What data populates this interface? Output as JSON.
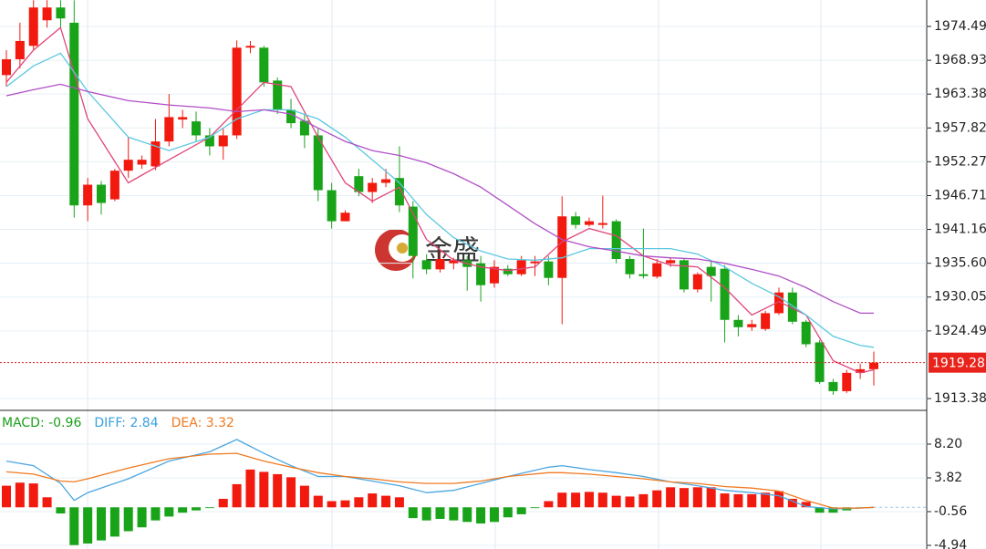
{
  "chart_data": [
    {
      "type": "candlestick",
      "watermark": "金盛",
      "open": [
        1966.5,
        1969.1,
        1971.3,
        1975.5,
        1977.6,
        1975.1,
        1945.1,
        1948.5,
        1946.1,
        1950.8,
        1951.8,
        1951.5,
        1955.6,
        1959.2,
        1958.9,
        1956.6,
        1954.8,
        1956.6,
        1971.0,
        1971.0,
        1965.6,
        1960.8,
        1959.0,
        1956.6,
        1947.6,
        1942.5,
        1949.9,
        1947.3,
        1948.8,
        1949.6,
        1944.9,
        1936.1,
        1934.6,
        1935.6,
        1936.1,
        1935.6,
        1932.3,
        1934.7,
        1933.8,
        1935.6,
        1935.9,
        1933.2,
        1943.3,
        1941.9,
        1941.9,
        1942.5,
        1936.3,
        1933.8,
        1933.4,
        1935.6,
        1936.1,
        1931.3,
        1935.0,
        1934.7,
        1926.3,
        1925.1,
        1924.8,
        1927.4,
        1930.8,
        1926.0,
        1922.6,
        1916.1,
        1914.6,
        1917.6,
        1918.2
      ],
      "high": [
        1970.6,
        1975.1,
        1978.8,
        1978.8,
        1978.8,
        1978.8,
        1949.6,
        1949.1,
        1951.1,
        1956.3,
        1953.3,
        1959.3,
        1963.4,
        1960.8,
        1960.5,
        1957.8,
        1957.8,
        1972.2,
        1972.1,
        1971.3,
        1966.1,
        1962.6,
        1960.1,
        1957.8,
        1948.8,
        1944.3,
        1951.1,
        1949.6,
        1951.1,
        1954.8,
        1945.8,
        1937.1,
        1937.6,
        1936.5,
        1936.8,
        1936.8,
        1936.1,
        1935.3,
        1936.8,
        1936.8,
        1936.8,
        1946.6,
        1944.0,
        1943.1,
        1946.7,
        1942.8,
        1936.8,
        1941.3,
        1936.3,
        1936.5,
        1936.3,
        1934.1,
        1936.1,
        1935.3,
        1927.1,
        1926.3,
        1927.8,
        1931.6,
        1931.6,
        1926.3,
        1923.0,
        1916.6,
        1918.1,
        1919.1,
        1921.1
      ],
      "low": [
        1964.6,
        1967.6,
        1970.6,
        1974.3,
        1974.3,
        1943.1,
        1942.5,
        1943.6,
        1945.8,
        1949.6,
        1951.1,
        1950.9,
        1954.8,
        1957.8,
        1955.6,
        1953.3,
        1952.6,
        1956.0,
        1970.1,
        1964.6,
        1960.1,
        1957.8,
        1954.5,
        1945.8,
        1941.3,
        1942.5,
        1946.6,
        1945.5,
        1948.1,
        1944.0,
        1933.1,
        1933.8,
        1934.1,
        1934.6,
        1931.1,
        1929.3,
        1931.6,
        1933.5,
        1933.5,
        1933.5,
        1932.0,
        1925.6,
        1941.3,
        1941.6,
        1941.3,
        1935.6,
        1933.1,
        1933.1,
        1933.1,
        1935.0,
        1930.8,
        1930.8,
        1929.3,
        1922.6,
        1923.6,
        1924.5,
        1924.5,
        1927.1,
        1925.6,
        1921.8,
        1915.8,
        1914.0,
        1914.3,
        1916.6,
        1915.5
      ],
      "close": [
        1969.1,
        1972.1,
        1977.6,
        1977.6,
        1975.8,
        1945.1,
        1948.5,
        1945.5,
        1950.8,
        1952.6,
        1952.6,
        1955.6,
        1959.6,
        1959.6,
        1956.6,
        1954.8,
        1956.6,
        1971.0,
        1971.3,
        1965.3,
        1960.8,
        1958.6,
        1956.6,
        1947.6,
        1942.5,
        1943.9,
        1947.3,
        1948.8,
        1949.4,
        1945.1,
        1936.8,
        1934.6,
        1936.3,
        1936.1,
        1935.0,
        1932.0,
        1935.0,
        1933.8,
        1936.1,
        1935.9,
        1933.2,
        1943.3,
        1941.9,
        1942.5,
        1942.2,
        1936.3,
        1933.8,
        1933.5,
        1935.6,
        1936.1,
        1931.3,
        1933.8,
        1933.5,
        1926.3,
        1925.1,
        1925.6,
        1927.4,
        1930.8,
        1926.0,
        1922.3,
        1916.1,
        1914.6,
        1917.6,
        1918.2,
        1919.28
      ],
      "up_color": "#f2190f",
      "down_color": "#19a319",
      "lines": [
        {
          "color": "#e0457a",
          "x": [
            0,
            2,
            4,
            6,
            9,
            12,
            15,
            17,
            19,
            21,
            23,
            25,
            27,
            29,
            31,
            33,
            35,
            37,
            39,
            41,
            43,
            45,
            47,
            49,
            51,
            53,
            55,
            57,
            59,
            61,
            63,
            64
          ],
          "values": [
            1965.3,
            1970.6,
            1974.3,
            1959.3,
            1948.8,
            1952.6,
            1956.3,
            1960.8,
            1965.3,
            1964.6,
            1956.3,
            1948.8,
            1945.8,
            1948.1,
            1939.5,
            1936.1,
            1935.0,
            1934.4,
            1935.0,
            1939.1,
            1941.3,
            1940.1,
            1936.8,
            1935.3,
            1935.0,
            1931.6,
            1927.1,
            1929.3,
            1927.1,
            1919.6,
            1917.6,
            1918.1
          ]
        },
        {
          "color": "#5bc8e0",
          "x": [
            0,
            2,
            4,
            6,
            9,
            12,
            15,
            17,
            19,
            21,
            23,
            25,
            27,
            29,
            31,
            33,
            35,
            37,
            39,
            41,
            43,
            45,
            47,
            49,
            51,
            53,
            55,
            57,
            59,
            61,
            63,
            64
          ],
          "values": [
            1964.6,
            1968.0,
            1970.1,
            1963.8,
            1956.3,
            1954.1,
            1956.3,
            1959.3,
            1960.8,
            1960.8,
            1959.3,
            1956.3,
            1952.6,
            1948.8,
            1943.6,
            1939.8,
            1937.6,
            1936.3,
            1936.1,
            1936.5,
            1938.0,
            1938.0,
            1938.0,
            1938.0,
            1937.1,
            1935.0,
            1932.3,
            1930.1,
            1927.1,
            1923.6,
            1922.1,
            1921.8
          ]
        },
        {
          "color": "#b14fc6",
          "x": [
            0,
            2,
            4,
            6,
            9,
            12,
            15,
            17,
            19,
            21,
            23,
            25,
            27,
            29,
            31,
            33,
            35,
            37,
            39,
            41,
            43,
            45,
            47,
            49,
            51,
            53,
            55,
            57,
            59,
            61,
            63,
            64
          ],
          "values": [
            1963.1,
            1964.1,
            1965.0,
            1963.8,
            1962.3,
            1961.6,
            1961.1,
            1960.5,
            1960.8,
            1960.1,
            1957.8,
            1955.6,
            1954.1,
            1953.3,
            1952.1,
            1950.3,
            1948.1,
            1945.1,
            1942.1,
            1939.5,
            1938.3,
            1937.6,
            1936.8,
            1936.5,
            1936.3,
            1935.6,
            1934.6,
            1933.5,
            1931.6,
            1929.3,
            1927.4,
            1927.4
          ]
        }
      ],
      "ylim": [
        1911.74,
        1978.83
      ],
      "yticks": [
        1913.38,
        1924.49,
        1930.05,
        {
          "value": 1935.6,
          "label": "1935.60"
        },
        1941.16,
        1946.71,
        1952.27,
        1957.82,
        1963.38,
        1968.93,
        1974.49
      ],
      "grid": true
    },
    {
      "type": "macd",
      "header": [
        {
          "text": "MACD: -0.96",
          "color": "#1a9e1a"
        },
        {
          "text": "DIFF: 2.84",
          "color": "#3aa0e0"
        },
        {
          "text": "DEA: 3.32",
          "color": "#f07a20"
        }
      ],
      "values": [
        2.8,
        3.2,
        3.1,
        1.3,
        -0.8,
        -4.9,
        -4.7,
        -4.3,
        -3.8,
        -3.1,
        -2.6,
        -1.7,
        -1.2,
        -0.7,
        -0.4,
        -0.1,
        1.1,
        3.0,
        4.9,
        4.6,
        4.3,
        3.9,
        2.8,
        1.5,
        0.8,
        0.9,
        1.3,
        1.8,
        1.5,
        1.3,
        -1.4,
        -1.7,
        -1.5,
        -1.7,
        -1.9,
        -2.1,
        -1.9,
        -1.3,
        -0.9,
        -0.1,
        0.8,
        1.9,
        1.9,
        2.0,
        1.9,
        1.5,
        1.4,
        1.7,
        2.2,
        2.6,
        2.5,
        2.6,
        2.6,
        1.8,
        1.7,
        1.7,
        1.9,
        2.1,
        1.1,
        0.7,
        -0.7,
        -0.7,
        -0.4,
        -0.1,
        0.0
      ],
      "up_color": "#f2190f",
      "down_color": "#19a319",
      "lines": [
        {
          "color": "#4aa6e0",
          "x": [
            0,
            2,
            4,
            5,
            6,
            9,
            12,
            15,
            17,
            19,
            21,
            23,
            25,
            27,
            29,
            31,
            33,
            35,
            37,
            40,
            41,
            43,
            45,
            47,
            49,
            51,
            53,
            55,
            57,
            59,
            61,
            63,
            64
          ],
          "values": [
            6.0,
            5.4,
            3.1,
            0.9,
            1.9,
            3.7,
            6.0,
            7.2,
            8.8,
            7.0,
            5.4,
            4.0,
            4.0,
            3.4,
            2.8,
            1.9,
            2.2,
            3.1,
            4.0,
            5.2,
            5.4,
            4.9,
            4.5,
            4.0,
            3.3,
            2.8,
            2.2,
            1.9,
            1.5,
            0.1,
            -0.2,
            -0.1,
            0.0
          ]
        },
        {
          "color": "#f07a20",
          "x": [
            0,
            2,
            4,
            5,
            6,
            9,
            12,
            15,
            17,
            19,
            21,
            23,
            25,
            27,
            29,
            31,
            33,
            35,
            37,
            40,
            41,
            43,
            45,
            47,
            49,
            51,
            53,
            55,
            57,
            59,
            61,
            63,
            64
          ],
          "values": [
            4.6,
            4.3,
            3.4,
            3.3,
            3.7,
            5.1,
            6.3,
            6.9,
            7.0,
            6.0,
            5.2,
            4.5,
            4.0,
            3.7,
            3.3,
            3.1,
            3.1,
            3.4,
            4.0,
            4.5,
            4.5,
            4.3,
            4.0,
            3.7,
            3.3,
            3.1,
            2.7,
            2.5,
            2.1,
            0.9,
            -0.1,
            -0.1,
            0.0
          ]
        }
      ],
      "ylim": [
        -5.41,
        12.34
      ],
      "yticks": [
        {
          "value": 8.2,
          "label": "8.20"
        },
        3.82,
        -0.56,
        -4.94
      ]
    }
  ]
}
